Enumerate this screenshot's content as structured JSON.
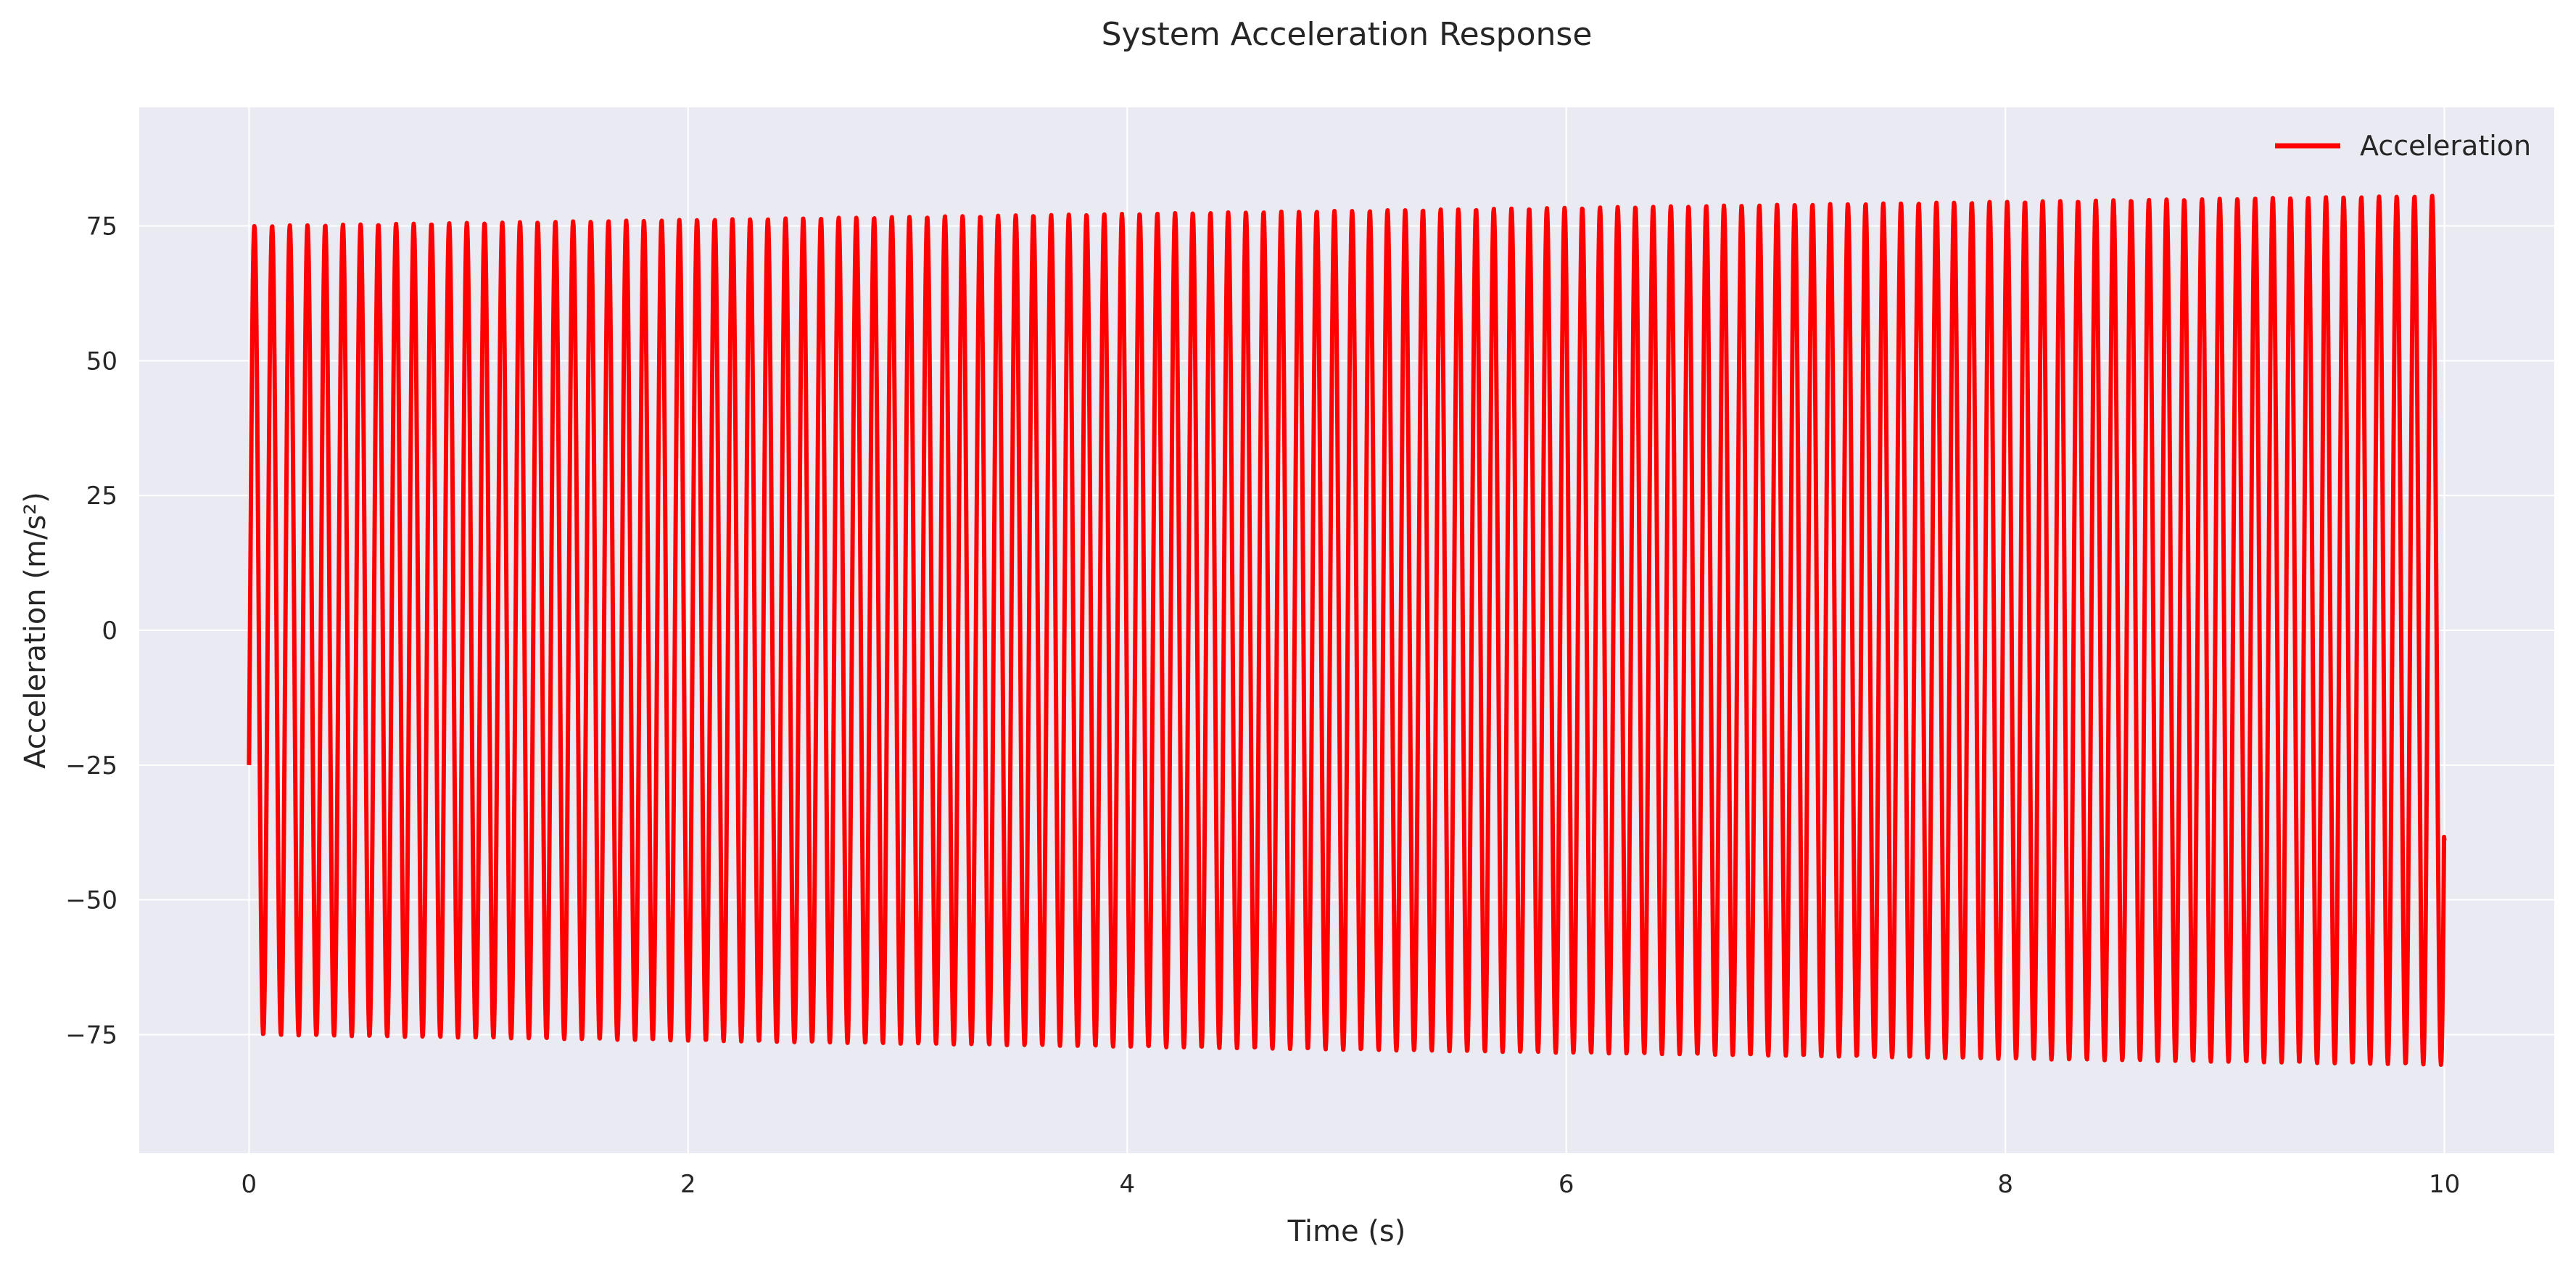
{
  "chart_data": {
    "type": "line",
    "title": "System Acceleration Response",
    "xlabel": "Time (s)",
    "ylabel": "Acceleration (m/s²)",
    "xlim": [
      -0.5,
      10.5
    ],
    "ylim": [
      -97,
      97
    ],
    "x_ticks": [
      0,
      2,
      4,
      6,
      8,
      10
    ],
    "x_tick_labels": [
      "0",
      "2",
      "4",
      "6",
      "8",
      "10"
    ],
    "y_ticks": [
      -75,
      -50,
      -25,
      0,
      25,
      50,
      75
    ],
    "y_tick_labels": [
      "−75",
      "−50",
      "−25",
      "0",
      "25",
      "50",
      "75"
    ],
    "grid": true,
    "legend_position": "top-right",
    "series": [
      {
        "name": "Acceleration",
        "color": "#ff0000",
        "start": {
          "x": 0.0,
          "y": -25.0
        },
        "end": {
          "x": 10.0,
          "y": -39.0
        },
        "oscillation_frequency_hz": 12.4,
        "amplitude_start": 75.0,
        "amplitude_end": 80.6
      }
    ],
    "colors": {
      "plot_background": "#eaeaf2",
      "grid": "#ffffff",
      "line": "#ff0000"
    }
  }
}
